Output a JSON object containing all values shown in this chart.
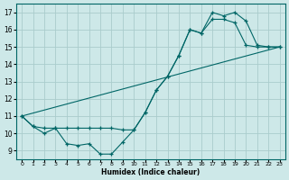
{
  "xlabel": "Humidex (Indice chaleur)",
  "background_color": "#cde8e8",
  "grid_color": "#aacccc",
  "line_color": "#006666",
  "xlim": [
    -0.5,
    23.5
  ],
  "ylim": [
    8.5,
    17.5
  ],
  "xticks": [
    0,
    1,
    2,
    3,
    4,
    5,
    6,
    7,
    8,
    9,
    10,
    11,
    12,
    13,
    14,
    15,
    16,
    17,
    18,
    19,
    20,
    21,
    22,
    23
  ],
  "yticks": [
    9,
    10,
    11,
    12,
    13,
    14,
    15,
    16,
    17
  ],
  "series1_x": [
    0,
    1,
    2,
    3,
    4,
    5,
    6,
    7,
    8,
    9,
    10,
    11,
    12,
    13,
    14,
    15,
    16,
    17,
    18,
    19,
    20,
    21,
    22,
    23
  ],
  "series1_y": [
    11.0,
    10.4,
    10.0,
    10.3,
    9.4,
    9.3,
    9.4,
    8.8,
    8.8,
    9.5,
    10.2,
    11.2,
    12.5,
    13.3,
    14.5,
    16.0,
    15.8,
    16.6,
    16.6,
    16.4,
    15.1,
    15.0,
    15.0,
    15.0
  ],
  "series2_x": [
    0,
    1,
    2,
    3,
    4,
    5,
    6,
    7,
    8,
    9,
    10,
    11,
    12,
    13,
    14,
    15,
    16,
    17,
    18,
    19,
    20,
    21,
    22,
    23
  ],
  "series2_y": [
    11.0,
    10.4,
    10.3,
    10.3,
    10.3,
    10.3,
    10.3,
    10.3,
    10.3,
    10.2,
    10.2,
    11.2,
    12.5,
    13.3,
    14.5,
    16.0,
    15.8,
    17.0,
    16.8,
    17.0,
    16.5,
    15.1,
    15.0,
    15.0
  ],
  "series3_x": [
    0,
    23
  ],
  "series3_y": [
    11.0,
    15.0
  ]
}
